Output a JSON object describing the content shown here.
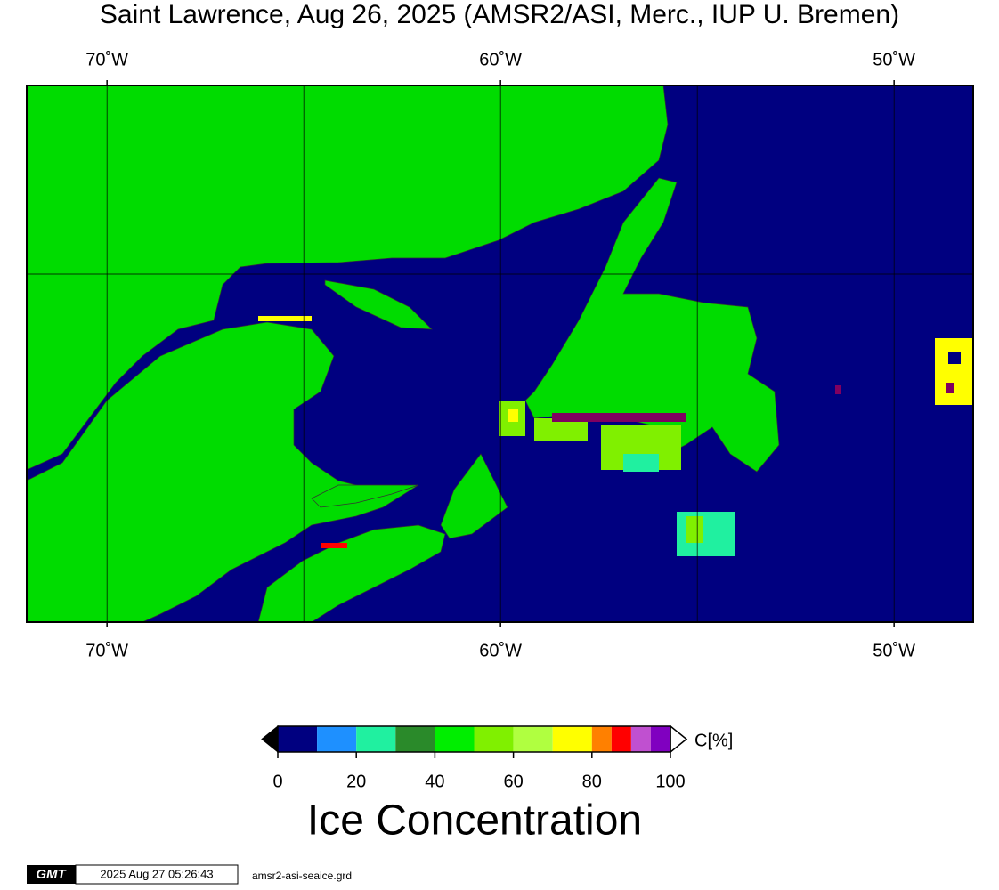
{
  "title": "Saint Lawrence, Aug 26, 2025 (AMSR2/ASI, Merc., IUP U. Bremen)",
  "map": {
    "xlim": [
      -72.04,
      -47.99
    ],
    "xticks": [
      {
        "value": -70,
        "label": "70˚W"
      },
      {
        "value": -60,
        "label": "60˚W"
      },
      {
        "value": -50,
        "label": "50˚W"
      }
    ],
    "xgrid": [
      -70,
      -65,
      -60,
      -55,
      -50
    ]
  },
  "colorbar": {
    "label": "Ice Concentration",
    "unit": "C[%]",
    "bounds": [
      0,
      10,
      20,
      30,
      40,
      50,
      60,
      70,
      80,
      85,
      90,
      95,
      100
    ],
    "colors": [
      "#000080",
      "#1e90ff",
      "#20f0a0",
      "#2a8a2a",
      "#00ee00",
      "#80f000",
      "#b0ff40",
      "#ffff00",
      "#ff8000",
      "#ff0000",
      "#c050d0",
      "#8000c0"
    ],
    "ticks": [
      0,
      20,
      40,
      60,
      80,
      100
    ]
  },
  "footer": {
    "logo": "GMT",
    "timestamp": "2025 Aug 27 05:26:43",
    "file": "amsr2-asi-seaice.grd"
  }
}
